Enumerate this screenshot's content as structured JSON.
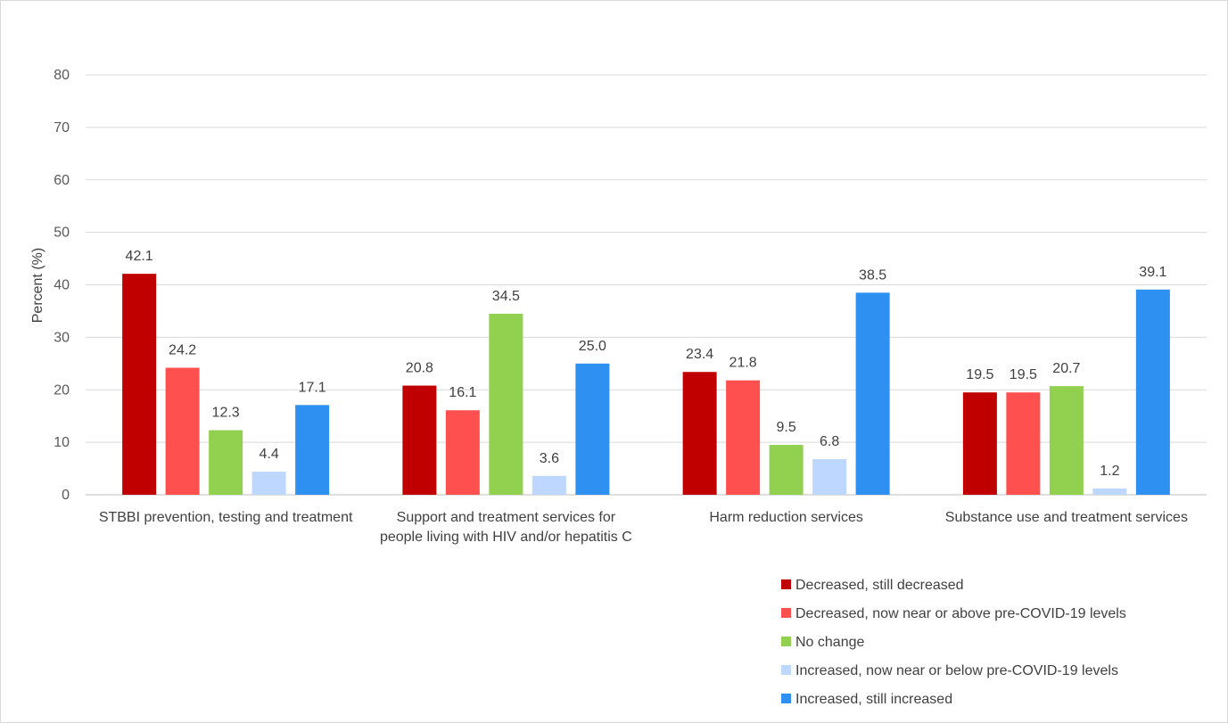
{
  "chart_data": {
    "type": "bar",
    "title": "",
    "xlabel": "",
    "ylabel": "Percent (%)",
    "ylim": [
      0,
      80
    ],
    "yticks": [
      0,
      10,
      20,
      30,
      40,
      50,
      60,
      70,
      80
    ],
    "grid": true,
    "legend_position": "bottom-right",
    "categories": [
      [
        "STBBI prevention, testing and treatment"
      ],
      [
        "Support and treatment services for",
        "people living with HIV and/or hepatitis C"
      ],
      [
        "Harm reduction services"
      ],
      [
        "Substance use and treatment services"
      ]
    ],
    "series": [
      {
        "name": "Decreased, still decreased",
        "color": "#c00000",
        "values": [
          42.1,
          20.8,
          23.4,
          19.5
        ],
        "labels": [
          "42.1",
          "20.8",
          "23.4",
          "19.5"
        ]
      },
      {
        "name": "Decreased, now near or above pre-COVID-19 levels",
        "color": "#ff5050",
        "values": [
          24.2,
          16.1,
          21.8,
          19.5
        ],
        "labels": [
          "24.2",
          "16.1",
          "21.8",
          "19.5"
        ]
      },
      {
        "name": "No change",
        "color": "#92d050",
        "values": [
          12.3,
          34.5,
          9.5,
          20.7
        ],
        "labels": [
          "12.3",
          "34.5",
          "9.5",
          "20.7"
        ]
      },
      {
        "name": "Increased, now near or below pre-COVID-19 levels",
        "color": "#bdd7ff",
        "values": [
          4.4,
          3.6,
          6.8,
          1.2
        ],
        "labels": [
          "4.4",
          "3.6",
          "6.8",
          "1.2"
        ]
      },
      {
        "name": "Increased, still increased",
        "color": "#2e90f0",
        "values": [
          17.1,
          25.0,
          38.5,
          39.1
        ],
        "labels": [
          "17.1",
          "25.0",
          "38.5",
          "39.1"
        ]
      }
    ]
  }
}
